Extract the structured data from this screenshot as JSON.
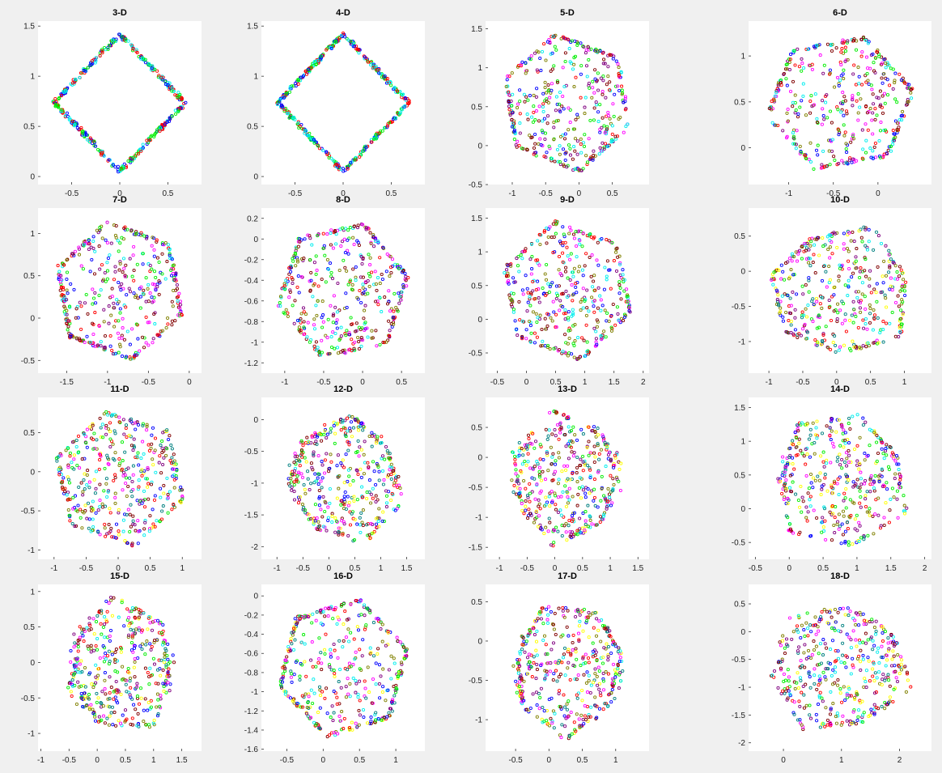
{
  "figure": {
    "background": "#f0f0f0"
  },
  "chart_data": [
    {
      "type": "scatter",
      "title": "3-D",
      "xlim": [
        -0.85,
        0.85
      ],
      "ylim": [
        -0.08,
        1.55
      ],
      "xticks": [
        -0.5,
        0,
        0.5
      ],
      "yticks": [
        0,
        0.5,
        1,
        1.5
      ],
      "shape": "diamond",
      "ring": 1.0,
      "seed": 3
    },
    {
      "type": "scatter",
      "title": "4-D",
      "xlim": [
        -0.85,
        0.85
      ],
      "ylim": [
        -0.08,
        1.55
      ],
      "xticks": [
        -0.5,
        0,
        0.5
      ],
      "yticks": [
        0,
        0.5,
        1,
        1.5
      ],
      "shape": "diamond",
      "ring": 1.0,
      "seed": 4
    },
    {
      "type": "scatter",
      "title": "5-D",
      "xlim": [
        -1.4,
        1.05
      ],
      "ylim": [
        -0.5,
        1.6
      ],
      "xticks": [
        -1,
        -0.5,
        0,
        0.5
      ],
      "yticks": [
        -0.5,
        0,
        0.5,
        1,
        1.5
      ],
      "shape": "cube",
      "ring": 0.45,
      "seed": 5
    },
    {
      "type": "scatter",
      "title": "6-D",
      "xlim": [
        -1.45,
        0.6
      ],
      "ylim": [
        -0.4,
        1.38
      ],
      "xticks": [
        -1,
        -0.5,
        0
      ],
      "yticks": [
        0,
        0.5,
        1
      ],
      "shape": "cube",
      "ring": 0.5,
      "seed": 6
    },
    {
      "type": "scatter",
      "title": "7-D",
      "xlim": [
        -1.85,
        0.15
      ],
      "ylim": [
        -0.65,
        1.3
      ],
      "xticks": [
        -1.5,
        -1,
        -0.5,
        0
      ],
      "yticks": [
        -0.5,
        0,
        0.5,
        1
      ],
      "shape": "cube",
      "ring": 0.5,
      "seed": 7
    },
    {
      "type": "scatter",
      "title": "8-D",
      "xlim": [
        -1.3,
        0.8
      ],
      "ylim": [
        -1.3,
        0.3
      ],
      "xticks": [
        -1,
        -0.5,
        0,
        0.5
      ],
      "yticks": [
        -1.2,
        -1,
        -0.8,
        -0.6,
        -0.4,
        -0.2,
        0,
        0.2
      ],
      "shape": "cube",
      "ring": 0.45,
      "seed": 8
    },
    {
      "type": "scatter",
      "title": "9-D",
      "xlim": [
        -0.7,
        2.1
      ],
      "ylim": [
        -0.8,
        1.65
      ],
      "xticks": [
        -0.5,
        0,
        0.5,
        1,
        1.5,
        2
      ],
      "yticks": [
        -0.5,
        0,
        0.5,
        1,
        1.5
      ],
      "shape": "cube",
      "ring": 0.4,
      "seed": 9
    },
    {
      "type": "scatter",
      "title": "10-D",
      "xlim": [
        -1.3,
        1.4
      ],
      "ylim": [
        -1.45,
        0.9
      ],
      "xticks": [
        -1,
        -0.5,
        0,
        0.5,
        1
      ],
      "yticks": [
        -1,
        -0.5,
        0,
        0.5
      ],
      "shape": "blob",
      "ring": 0.35,
      "seed": 10
    },
    {
      "type": "scatter",
      "title": "11-D",
      "xlim": [
        -1.25,
        1.3
      ],
      "ylim": [
        -1.12,
        0.95
      ],
      "xticks": [
        -1,
        -0.5,
        0,
        0.5,
        1
      ],
      "yticks": [
        -1,
        -0.5,
        0,
        0.5
      ],
      "shape": "hex",
      "ring": 0.35,
      "seed": 11
    },
    {
      "type": "scatter",
      "title": "12-D",
      "xlim": [
        -1.3,
        1.85
      ],
      "ylim": [
        -2.2,
        0.35
      ],
      "xticks": [
        -1,
        -0.5,
        0,
        0.5,
        1,
        1.5
      ],
      "yticks": [
        -2,
        -1.5,
        -1,
        -0.5,
        0
      ],
      "shape": "blob",
      "ring": 0.3,
      "seed": 12
    },
    {
      "type": "scatter",
      "title": "13-D",
      "xlim": [
        -1.25,
        1.7
      ],
      "ylim": [
        -1.7,
        1.0
      ],
      "xticks": [
        -1,
        -0.5,
        0,
        0.5,
        1,
        1.5
      ],
      "yticks": [
        -1.5,
        -1,
        -0.5,
        0,
        0.5
      ],
      "shape": "blob",
      "ring": 0.25,
      "seed": 13
    },
    {
      "type": "scatter",
      "title": "14-D",
      "xlim": [
        -0.6,
        2.1
      ],
      "ylim": [
        -0.75,
        1.65
      ],
      "xticks": [
        -0.5,
        0,
        0.5,
        1,
        1.5,
        2
      ],
      "yticks": [
        -0.5,
        0,
        0.5,
        1,
        1.5
      ],
      "shape": "blob",
      "ring": 0.3,
      "seed": 14
    },
    {
      "type": "scatter",
      "title": "15-D",
      "xlim": [
        -1.05,
        1.85
      ],
      "ylim": [
        -1.25,
        1.1
      ],
      "xticks": [
        -1,
        -0.5,
        0,
        0.5,
        1,
        1.5
      ],
      "yticks": [
        -1,
        -0.5,
        0,
        0.5,
        1
      ],
      "shape": "blob",
      "ring": 0.25,
      "seed": 15
    },
    {
      "type": "scatter",
      "title": "16-D",
      "xlim": [
        -0.85,
        1.4
      ],
      "ylim": [
        -1.62,
        0.12
      ],
      "xticks": [
        -0.5,
        0,
        0.5,
        1
      ],
      "yticks": [
        -1.6,
        -1.4,
        -1.2,
        -1,
        -0.8,
        -0.6,
        -0.4,
        -0.2,
        0
      ],
      "shape": "hex",
      "ring": 0.5,
      "seed": 16
    },
    {
      "type": "scatter",
      "title": "17-D",
      "xlim": [
        -0.95,
        1.5
      ],
      "ylim": [
        -1.4,
        0.72
      ],
      "xticks": [
        -0.5,
        0,
        0.5,
        1
      ],
      "yticks": [
        -1,
        -0.5,
        0,
        0.5
      ],
      "shape": "blob",
      "ring": 0.3,
      "seed": 17
    },
    {
      "type": "scatter",
      "title": "18-D",
      "xlim": [
        -0.6,
        2.55
      ],
      "ylim": [
        -2.15,
        0.85
      ],
      "xticks": [
        0,
        1,
        2
      ],
      "yticks": [
        -2,
        -1.5,
        -1,
        -0.5,
        0,
        0.5
      ],
      "shape": "blob",
      "ring": 0.2,
      "seed": 18
    }
  ],
  "series_colors": [
    "#ff0000",
    "#00ee00",
    "#0000ff",
    "#00eeee",
    "#ff00ff",
    "#808000",
    "#800000",
    "#800080",
    "#008080",
    "#ffff00"
  ]
}
